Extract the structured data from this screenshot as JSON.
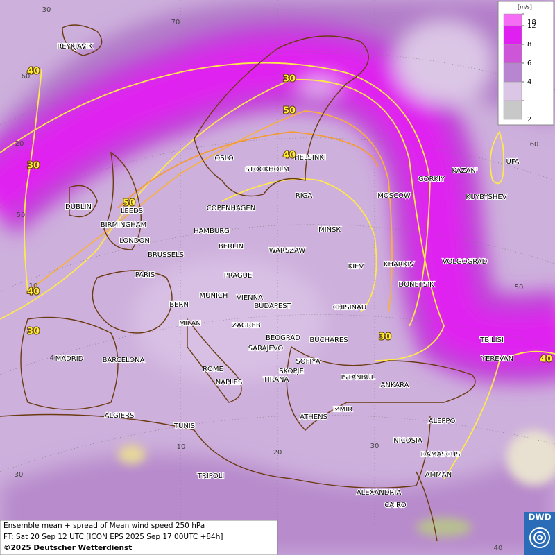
{
  "map": {
    "legend": {
      "unit": "[m/s]",
      "ticks": [
        2,
        4,
        6,
        8,
        12,
        18
      ]
    },
    "cities": [
      "REYKJAVIK",
      "OSLO",
      "STOCKHOLM",
      "HELSINKI",
      "DUBLIN",
      "LEEDS",
      "BIRMINGHAM",
      "LONDON",
      "COPENHAGEN",
      "HAMBURG",
      "RIGA",
      "MINSK",
      "MOSCOW",
      "GORKIY",
      "KAZAN'",
      "UFA",
      "KUYBYSHEV",
      "BERLIN",
      "WARSZAW",
      "KIEV",
      "KHARKIV",
      "VOLGOGRAD",
      "BRUSSELS",
      "PARIS",
      "PRAGUE",
      "DONETS'K",
      "MUNICH",
      "VIENNA",
      "BERN",
      "BUDAPEST",
      "CHISINAU",
      "MILAN",
      "ZAGREB",
      "BEOGRAD",
      "BUCHARES",
      "TBILISI",
      "SARAJEVO",
      "MADRID",
      "BARCELONA",
      "SOFIYA",
      "YEREVAN",
      "ROME",
      "SKOPJE",
      "ISTANBUL",
      "ANKARA",
      "NAPLES",
      "TIRANA",
      "ALGIERS",
      "IZMIR",
      "ATHENS",
      "ALEPPO",
      "TUNIS",
      "NICOSIA",
      "DAMASCUS",
      "TRIPOLI",
      "AMMAN",
      "ALEXANDRIA",
      "CAIRO"
    ],
    "contour_labels": [
      30,
      50,
      40,
      30,
      40,
      50,
      40,
      30,
      30,
      40
    ],
    "grid_labels": [
      30,
      70,
      60,
      20,
      50,
      10,
      40,
      30,
      60,
      50,
      40,
      30,
      20,
      10,
      70
    ],
    "footer": {
      "lines": [
        "Ensemble mean + spread of Mean wind speed 250 hPa",
        "FT: Sat 20 Sep 12 UTC [ICON EPS 2025 Sep 17 00UTC +84h]",
        "©2025 Deutscher Wetterdienst"
      ]
    },
    "logo": "DWD"
  }
}
